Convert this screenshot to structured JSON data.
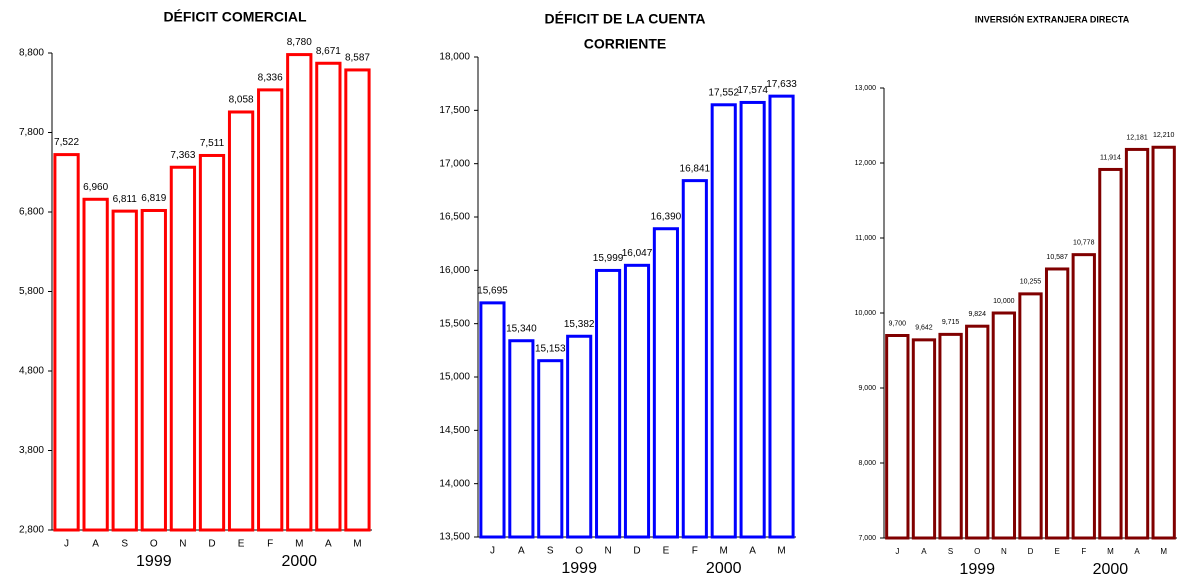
{
  "chart_data": [
    {
      "type": "bar",
      "title": [
        "DÉFICIT COMERCIAL"
      ],
      "color": "#ff0000",
      "categories": [
        "J",
        "A",
        "S",
        "O",
        "N",
        "D",
        "E",
        "F",
        "M",
        "A",
        "M"
      ],
      "values": [
        7522,
        6960,
        6811,
        6819,
        7363,
        7511,
        8058,
        8336,
        8780,
        8671,
        8587
      ],
      "value_labels": [
        "7,522",
        "6,960",
        "6,811",
        "6,819",
        "7,363",
        "7,511",
        "8,058",
        "8,336",
        "8,780",
        "8,671",
        "8,587"
      ],
      "ylim": [
        2800,
        8800
      ],
      "yticks": [
        {
          "value": 2800,
          "label": "2,800"
        },
        {
          "value": 3800,
          "label": "3,800"
        },
        {
          "value": 4800,
          "label": "4,800"
        },
        {
          "value": 5800,
          "label": "5,800"
        },
        {
          "value": 6800,
          "label": "6,800"
        },
        {
          "value": 7800,
          "label": "7,800"
        },
        {
          "value": 8800,
          "label": "8,800"
        }
      ],
      "annotations": [
        "1999",
        "2000"
      ]
    },
    {
      "type": "bar",
      "title": [
        "DÉFICIT DE LA CUENTA",
        "CORRIENTE"
      ],
      "color": "#0000ff",
      "categories": [
        "J",
        "A",
        "S",
        "O",
        "N",
        "D",
        "E",
        "F",
        "M",
        "A",
        "M"
      ],
      "values": [
        15695,
        15340,
        15153,
        15382,
        15999,
        16047,
        16390,
        16841,
        17552,
        17574,
        17633
      ],
      "value_labels": [
        "15,695",
        "15,340",
        "15,153",
        "15,382",
        "15,999",
        "16,047",
        "16,390",
        "16,841",
        "17,552",
        "17,574",
        "17,633"
      ],
      "ylim": [
        13500,
        18000
      ],
      "yticks": [
        {
          "value": 13500,
          "label": "13,500"
        },
        {
          "value": 14000,
          "label": "14,000"
        },
        {
          "value": 14500,
          "label": "14,500"
        },
        {
          "value": 15000,
          "label": "15,000"
        },
        {
          "value": 15500,
          "label": "15,500"
        },
        {
          "value": 16000,
          "label": "16,000"
        },
        {
          "value": 16500,
          "label": "16,500"
        },
        {
          "value": 17000,
          "label": "17,000"
        },
        {
          "value": 17500,
          "label": "17,500"
        },
        {
          "value": 18000,
          "label": "18,000"
        }
      ],
      "annotations": [
        "1999",
        "2000"
      ]
    },
    {
      "type": "bar",
      "title": [
        "INVERSIÓN EXTRANJERA DIRECTA"
      ],
      "color": "#800000",
      "categories": [
        "J",
        "A",
        "S",
        "O",
        "N",
        "D",
        "E",
        "F",
        "M",
        "A",
        "M"
      ],
      "values": [
        9700,
        9642,
        9715,
        9824,
        10000,
        10255,
        10587,
        10778,
        11914,
        12181,
        12210
      ],
      "value_labels": [
        "9,700",
        "9,642",
        "9,715",
        "9,824",
        "10,000",
        "10,255",
        "10,587",
        "10,778",
        "11,914",
        "12,181",
        "12,210"
      ],
      "ylim": [
        7000,
        13000
      ],
      "yticks": [
        {
          "value": 7000,
          "label": "7,000"
        },
        {
          "value": 8000,
          "label": "8,000"
        },
        {
          "value": 9000,
          "label": "9,000"
        },
        {
          "value": 10000,
          "label": "10,000"
        },
        {
          "value": 11000,
          "label": "11,000"
        },
        {
          "value": 12000,
          "label": "12,000"
        },
        {
          "value": 13000,
          "label": "13,000"
        }
      ],
      "annotations": [
        "1999",
        "2000"
      ]
    }
  ]
}
